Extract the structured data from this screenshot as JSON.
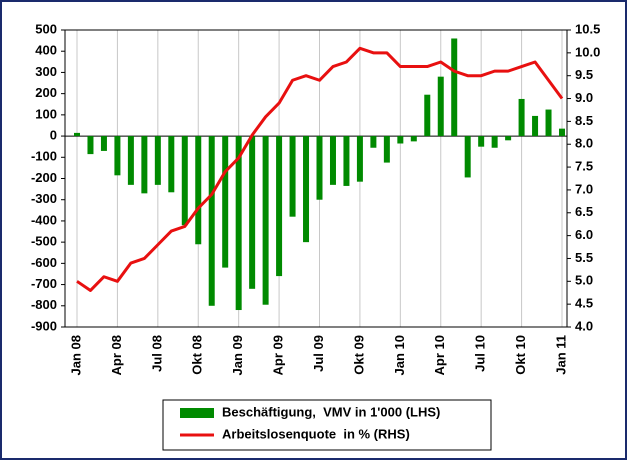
{
  "chart_data": {
    "type": "bar_line",
    "categories": [
      "Jan 08",
      null,
      null,
      "Apr 08",
      null,
      null,
      "Jul 08",
      null,
      null,
      "Okt 08",
      null,
      null,
      "Jan 09",
      null,
      null,
      "Apr 09",
      null,
      null,
      "Jul 09",
      null,
      null,
      "Okt 09",
      null,
      null,
      "Jan 10",
      null,
      null,
      "Apr 10",
      null,
      null,
      "Jul 10",
      null,
      null,
      "Okt 10",
      null,
      null,
      "Jan 11"
    ],
    "series": [
      {
        "name": "Beschäftigung,  VMV in 1'000 (LHS)",
        "type": "bar",
        "axis": "y",
        "color": "#008a00",
        "values": [
          15,
          -85,
          -70,
          -185,
          -230,
          -270,
          -230,
          -265,
          -420,
          -510,
          -800,
          -620,
          -820,
          -720,
          -795,
          -660,
          -380,
          -500,
          -300,
          -230,
          -235,
          -215,
          -55,
          -125,
          -35,
          -25,
          195,
          280,
          460,
          -195,
          -50,
          -55,
          -20,
          175,
          95,
          125,
          35
        ]
      },
      {
        "name": "Arbeitslosenquote  in % (RHS)",
        "type": "line",
        "axis": "y2",
        "color": "#e81010",
        "values": [
          5.0,
          4.8,
          5.1,
          5.0,
          5.4,
          5.5,
          5.8,
          6.1,
          6.2,
          6.6,
          6.9,
          7.4,
          7.7,
          8.2,
          8.6,
          8.9,
          9.4,
          9.5,
          9.4,
          9.7,
          9.8,
          10.1,
          10.0,
          10.0,
          9.7,
          9.7,
          9.7,
          9.8,
          9.6,
          9.5,
          9.5,
          9.6,
          9.6,
          9.7,
          9.8,
          9.4,
          9.0
        ]
      }
    ],
    "ylim": [
      -900,
      500
    ],
    "yticks": [
      -900,
      -800,
      -700,
      -600,
      -500,
      -400,
      -300,
      -200,
      -100,
      0,
      100,
      200,
      300,
      400,
      500
    ],
    "y2lim": [
      4,
      10.5
    ],
    "y2ticks": [
      {
        "value": 4,
        "label": "4.0"
      },
      4.5,
      {
        "value": 5,
        "label": "5.0"
      },
      5.5,
      {
        "value": 6,
        "label": "6.0"
      },
      6.5,
      {
        "value": 7,
        "label": "7.0"
      },
      7.5,
      {
        "value": 8,
        "label": "8.0"
      },
      8.5,
      {
        "value": 9,
        "label": "9.0"
      },
      9.5,
      {
        "value": 10,
        "label": "10.0"
      },
      10.5
    ],
    "grid": "x",
    "legend": "bottom"
  }
}
